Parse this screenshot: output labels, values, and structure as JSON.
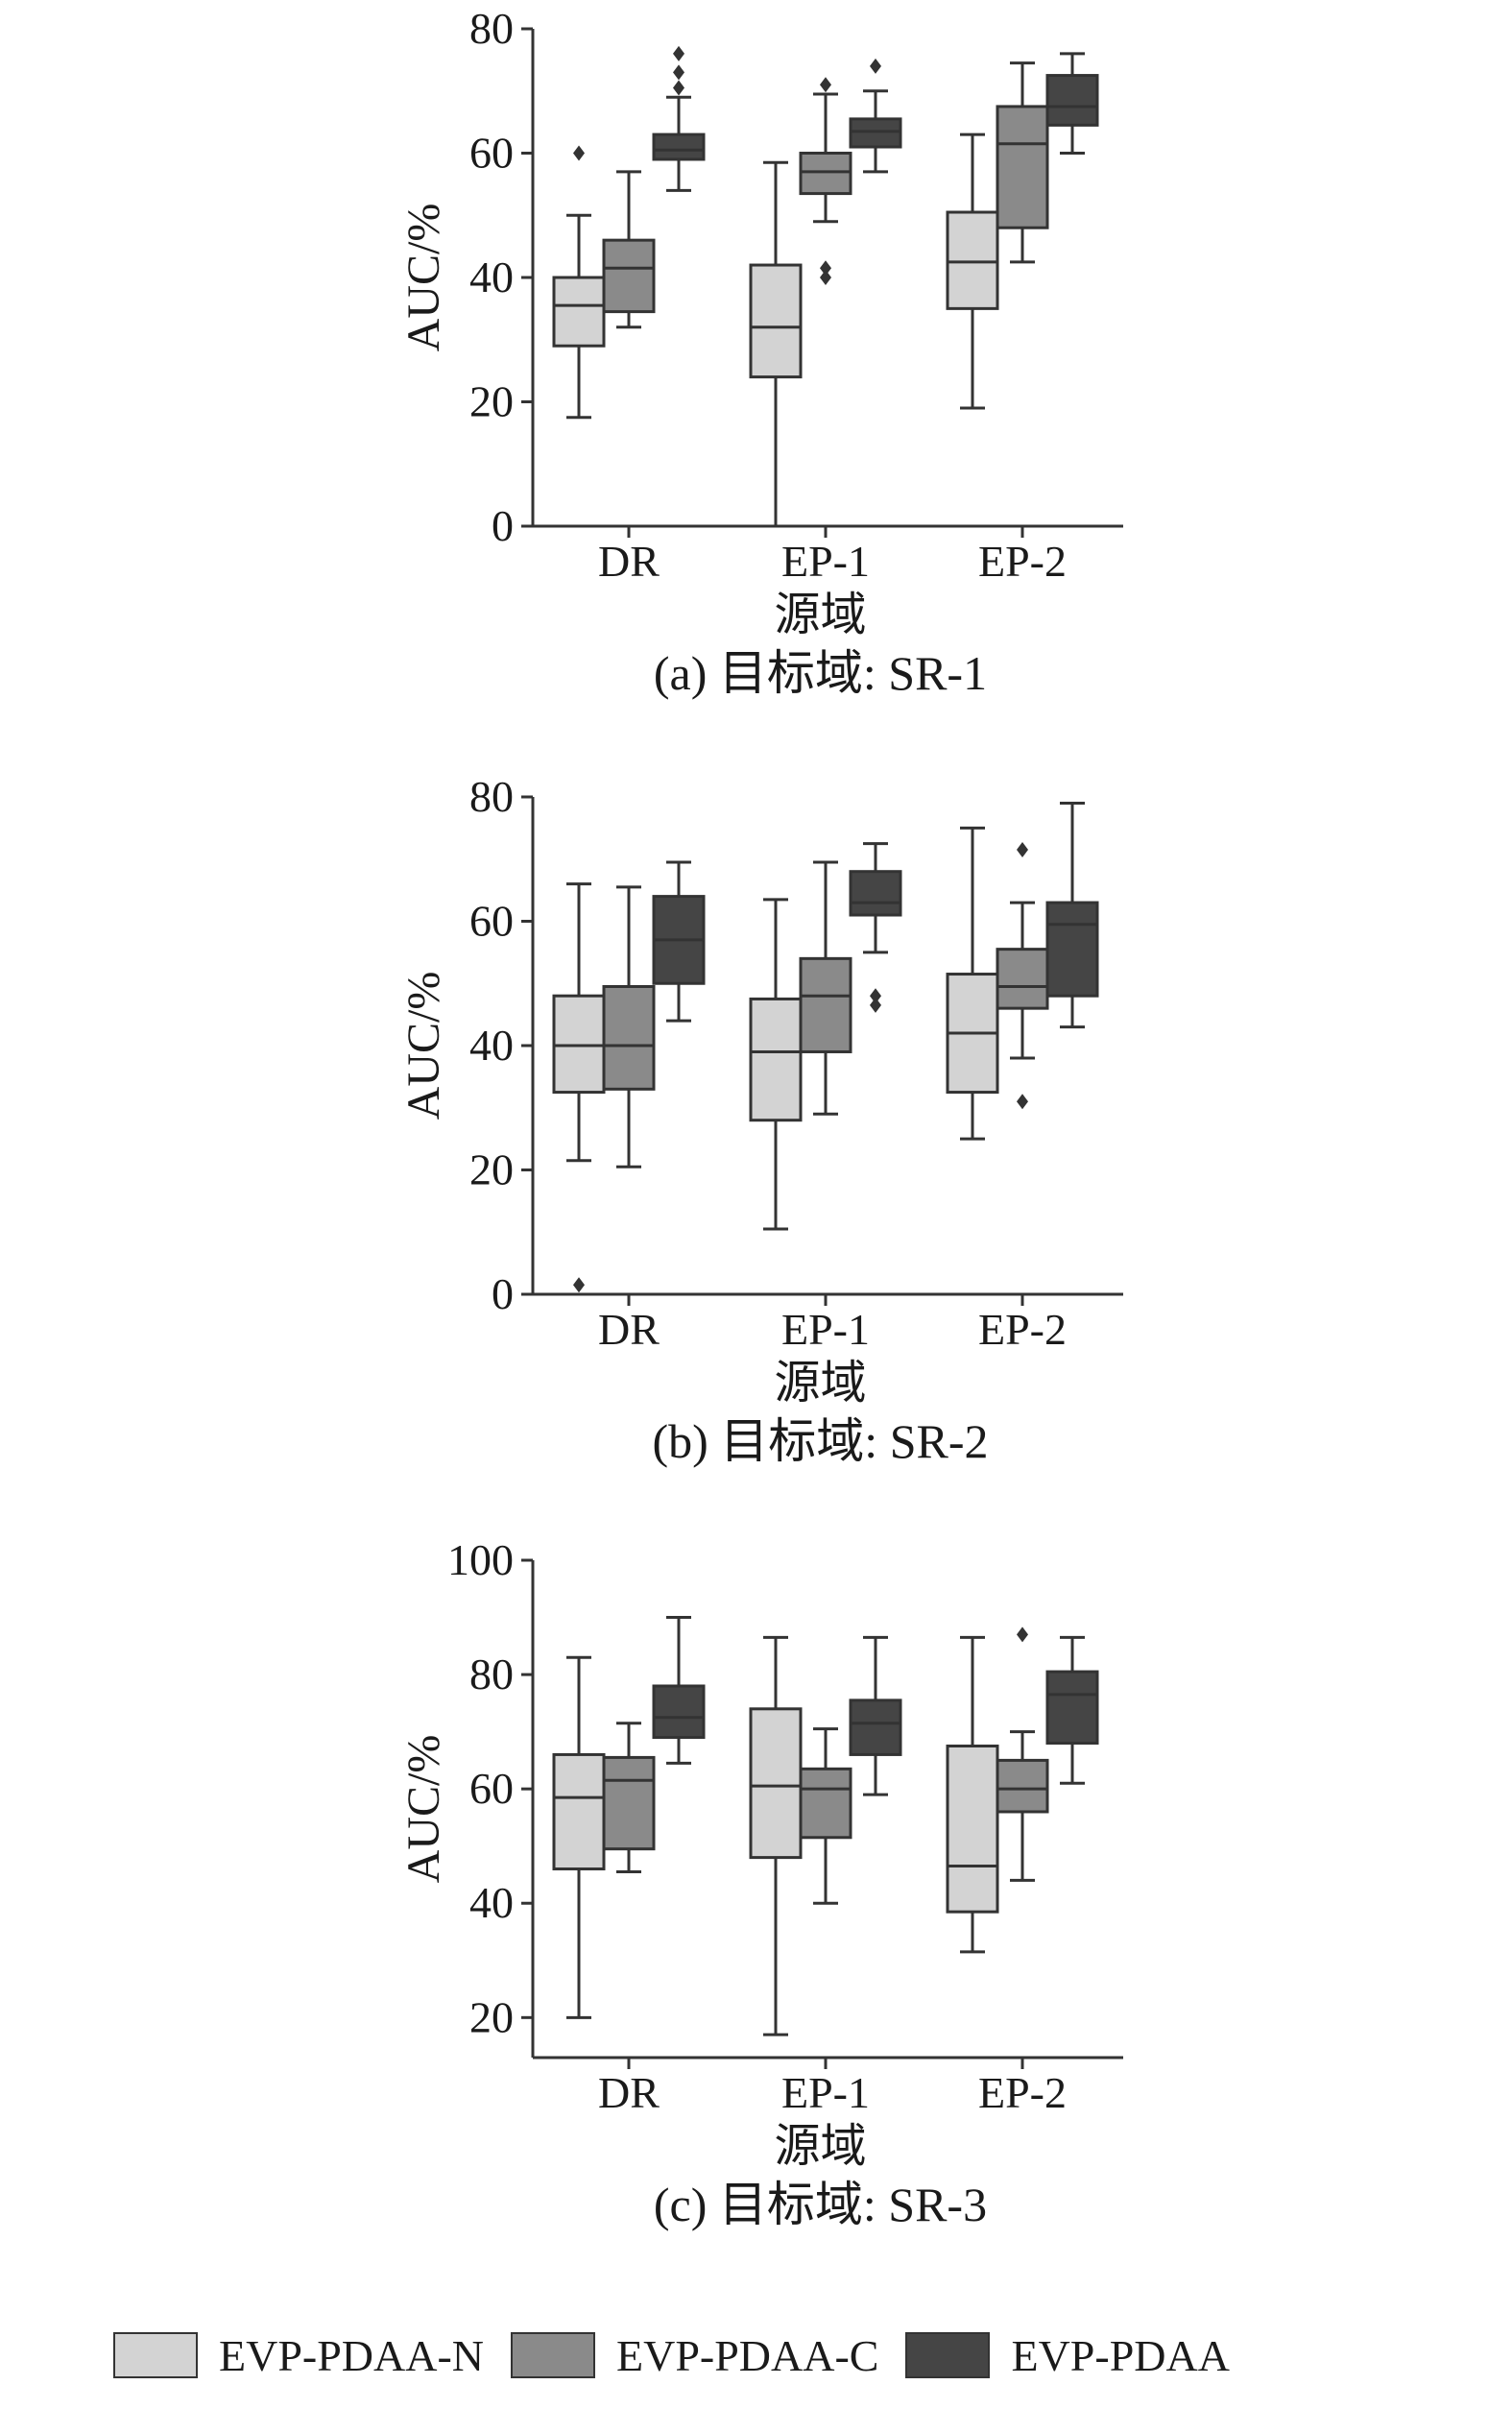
{
  "colors": {
    "EVP-PDAA-N": "#d3d3d3",
    "EVP-PDAA-C": "#8a8a8a",
    "EVP-PDAA": "#454545",
    "stroke": "#333333"
  },
  "legend": {
    "items": [
      {
        "label": "EVP-PDAA-N",
        "color": "#d3d3d3"
      },
      {
        "label": "EVP-PDAA-C",
        "color": "#8a8a8a"
      },
      {
        "label": "EVP-PDAA",
        "color": "#454545"
      }
    ]
  },
  "chart_data": [
    {
      "type": "box",
      "caption": "(a) 目标域: SR-1",
      "xlabel": "源域",
      "ylabel": "AUC/%",
      "ylim": [
        0,
        80
      ],
      "yticks": [
        0,
        20,
        40,
        60,
        80
      ],
      "categories": [
        "DR",
        "EP-1",
        "EP-2"
      ],
      "series": [
        {
          "name": "EVP-PDAA-N",
          "boxes": [
            {
              "min": 17.5,
              "q1": 29,
              "median": 35.5,
              "q3": 40,
              "max": 50,
              "outliers": [
                60
              ]
            },
            {
              "min": 0,
              "q1": 24,
              "median": 32,
              "q3": 42,
              "max": 58.5,
              "outliers": []
            },
            {
              "min": 19,
              "q1": 35,
              "median": 42.5,
              "q3": 50.5,
              "max": 63,
              "outliers": []
            }
          ]
        },
        {
          "name": "EVP-PDAA-C",
          "boxes": [
            {
              "min": 32,
              "q1": 34.5,
              "median": 41.5,
              "q3": 46,
              "max": 57,
              "outliers": []
            },
            {
              "min": 49,
              "q1": 53.5,
              "median": 57,
              "q3": 60,
              "max": 69.5,
              "outliers": [
                40,
                41.5,
                71
              ]
            },
            {
              "min": 42.5,
              "q1": 48,
              "median": 61.5,
              "q3": 67.5,
              "max": 74.5,
              "outliers": []
            }
          ]
        },
        {
          "name": "EVP-PDAA",
          "boxes": [
            {
              "min": 54,
              "q1": 59,
              "median": 60.5,
              "q3": 63,
              "max": 69,
              "outliers": [
                70.5,
                73,
                76
              ]
            },
            {
              "min": 57,
              "q1": 61,
              "median": 63.5,
              "q3": 65.5,
              "max": 70,
              "outliers": [
                74
              ]
            },
            {
              "min": 60,
              "q1": 64.5,
              "median": 67.5,
              "q3": 72.5,
              "max": 76,
              "outliers": []
            }
          ]
        }
      ]
    },
    {
      "type": "box",
      "caption": "(b) 目标域: SR-2",
      "xlabel": "源域",
      "ylabel": "AUC/%",
      "ylim": [
        0,
        80
      ],
      "yticks": [
        0,
        20,
        40,
        60,
        80
      ],
      "categories": [
        "DR",
        "EP-1",
        "EP-2"
      ],
      "series": [
        {
          "name": "EVP-PDAA-N",
          "boxes": [
            {
              "min": 21.5,
              "q1": 32.5,
              "median": 40,
              "q3": 48,
              "max": 66,
              "outliers": [
                1.5
              ]
            },
            {
              "min": 10.5,
              "q1": 28,
              "median": 39,
              "q3": 47.5,
              "max": 63.5,
              "outliers": []
            },
            {
              "min": 25,
              "q1": 32.5,
              "median": 42,
              "q3": 51.5,
              "max": 75,
              "outliers": []
            }
          ]
        },
        {
          "name": "EVP-PDAA-C",
          "boxes": [
            {
              "min": 20.5,
              "q1": 33,
              "median": 40,
              "q3": 49.5,
              "max": 65.5,
              "outliers": []
            },
            {
              "min": 29,
              "q1": 39,
              "median": 48,
              "q3": 54,
              "max": 69.5,
              "outliers": []
            },
            {
              "min": 38,
              "q1": 46,
              "median": 49.5,
              "q3": 55.5,
              "max": 63,
              "outliers": [
                31,
                71.5
              ]
            }
          ]
        },
        {
          "name": "EVP-PDAA",
          "boxes": [
            {
              "min": 44,
              "q1": 50,
              "median": 57,
              "q3": 64,
              "max": 69.5,
              "outliers": []
            },
            {
              "min": 55,
              "q1": 61,
              "median": 63,
              "q3": 68,
              "max": 72.5,
              "outliers": [
                46.5,
                48
              ]
            },
            {
              "min": 43,
              "q1": 48,
              "median": 59.5,
              "q3": 63,
              "max": 79,
              "outliers": []
            }
          ]
        }
      ]
    },
    {
      "type": "box",
      "caption": "(c) 目标域: SR-3",
      "xlabel": "源域",
      "ylabel": "AUC/%",
      "ylim": [
        13,
        100
      ],
      "yticks": [
        20,
        40,
        60,
        80,
        100
      ],
      "categories": [
        "DR",
        "EP-1",
        "EP-2"
      ],
      "series": [
        {
          "name": "EVP-PDAA-N",
          "boxes": [
            {
              "min": 20,
              "q1": 46,
              "median": 58.5,
              "q3": 66,
              "max": 83,
              "outliers": []
            },
            {
              "min": 17,
              "q1": 48,
              "median": 60.5,
              "q3": 74,
              "max": 86.5,
              "outliers": []
            },
            {
              "min": 31.5,
              "q1": 38.5,
              "median": 46.5,
              "q3": 67.5,
              "max": 86.5,
              "outliers": []
            }
          ]
        },
        {
          "name": "EVP-PDAA-C",
          "boxes": [
            {
              "min": 45.5,
              "q1": 49.5,
              "median": 61.5,
              "q3": 65.5,
              "max": 71.5,
              "outliers": []
            },
            {
              "min": 40,
              "q1": 51.5,
              "median": 60,
              "q3": 63.5,
              "max": 70.5,
              "outliers": []
            },
            {
              "min": 44,
              "q1": 56,
              "median": 60,
              "q3": 65,
              "max": 70,
              "outliers": [
                87
              ]
            }
          ]
        },
        {
          "name": "EVP-PDAA",
          "boxes": [
            {
              "min": 64.5,
              "q1": 69,
              "median": 72.5,
              "q3": 78,
              "max": 90,
              "outliers": []
            },
            {
              "min": 59,
              "q1": 66,
              "median": 71.5,
              "q3": 75.5,
              "max": 86.5,
              "outliers": []
            },
            {
              "min": 61,
              "q1": 68,
              "median": 76.5,
              "q3": 80.5,
              "max": 86.5,
              "outliers": []
            }
          ]
        }
      ]
    }
  ]
}
